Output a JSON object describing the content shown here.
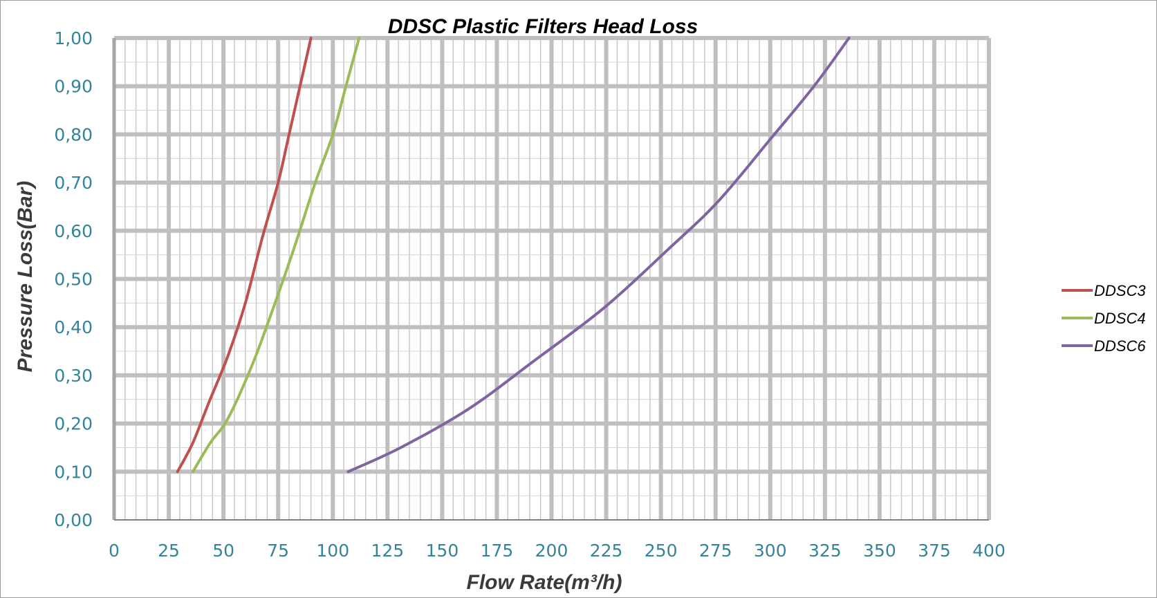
{
  "chart_data": {
    "type": "line",
    "title": "DDSC Plastic Filters Head Loss",
    "xlabel": "Flow Rate(m³/h)",
    "ylabel": "Pressure Loss(Bar)",
    "xlim": [
      0,
      400
    ],
    "ylim": [
      0,
      1
    ],
    "x_ticks": [
      "0",
      "25",
      "50",
      "75",
      "100",
      "125",
      "150",
      "175",
      "200",
      "225",
      "250",
      "275",
      "300",
      "325",
      "350",
      "375",
      "400"
    ],
    "y_ticks": [
      "0,00",
      "0,10",
      "0,20",
      "0,30",
      "0,40",
      "0,50",
      "0,60",
      "0,70",
      "0,80",
      "0,90",
      "1,00"
    ],
    "grid": true,
    "legend_position": "right",
    "series": [
      {
        "name": "DDSC3",
        "color": "#C0504D",
        "points": [
          [
            29,
            0.1
          ],
          [
            36,
            0.16
          ],
          [
            43,
            0.24
          ],
          [
            52,
            0.34
          ],
          [
            60,
            0.45
          ],
          [
            68,
            0.59
          ],
          [
            75,
            0.7
          ],
          [
            80,
            0.8
          ],
          [
            85,
            0.9
          ],
          [
            90,
            1.0
          ]
        ]
      },
      {
        "name": "DDSC4",
        "color": "#9BBB59",
        "points": [
          [
            36,
            0.1
          ],
          [
            44,
            0.16
          ],
          [
            52,
            0.21
          ],
          [
            63,
            0.32
          ],
          [
            72,
            0.43
          ],
          [
            82,
            0.56
          ],
          [
            92,
            0.7
          ],
          [
            100,
            0.8
          ],
          [
            106,
            0.9
          ],
          [
            112,
            1.0
          ]
        ]
      },
      {
        "name": "DDSC6",
        "color": "#8064A2",
        "points": [
          [
            107,
            0.1
          ],
          [
            131,
            0.15
          ],
          [
            162,
            0.23
          ],
          [
            192,
            0.33
          ],
          [
            224,
            0.44
          ],
          [
            253,
            0.56
          ],
          [
            276,
            0.66
          ],
          [
            300,
            0.79
          ],
          [
            320,
            0.9
          ],
          [
            336,
            1.0
          ]
        ]
      }
    ]
  }
}
